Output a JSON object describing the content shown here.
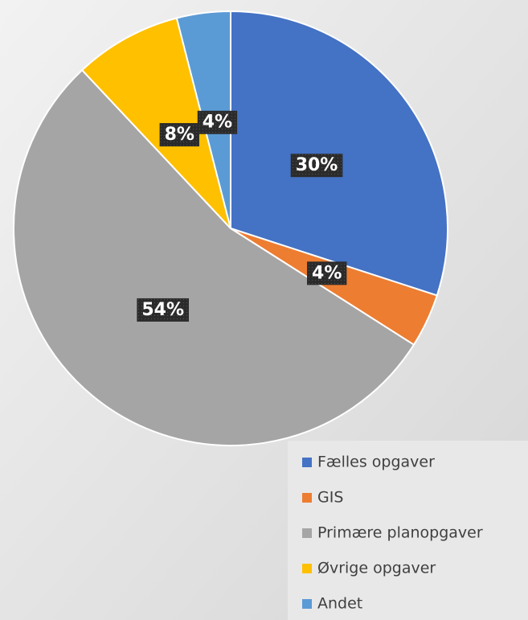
{
  "chart_data": {
    "type": "pie",
    "categories": [
      "Fælles opgaver",
      "GIS",
      "Primære planopgaver",
      "Øvrige opgaver",
      "Andet"
    ],
    "values": [
      30,
      4,
      54,
      8,
      4
    ],
    "value_labels": [
      "30%",
      "4%",
      "54%",
      "8%",
      "4%"
    ],
    "colors": [
      "#4472c4",
      "#ed7d31",
      "#a5a5a5",
      "#ffc000",
      "#5b9bd5"
    ],
    "legend": "bottom-right"
  }
}
